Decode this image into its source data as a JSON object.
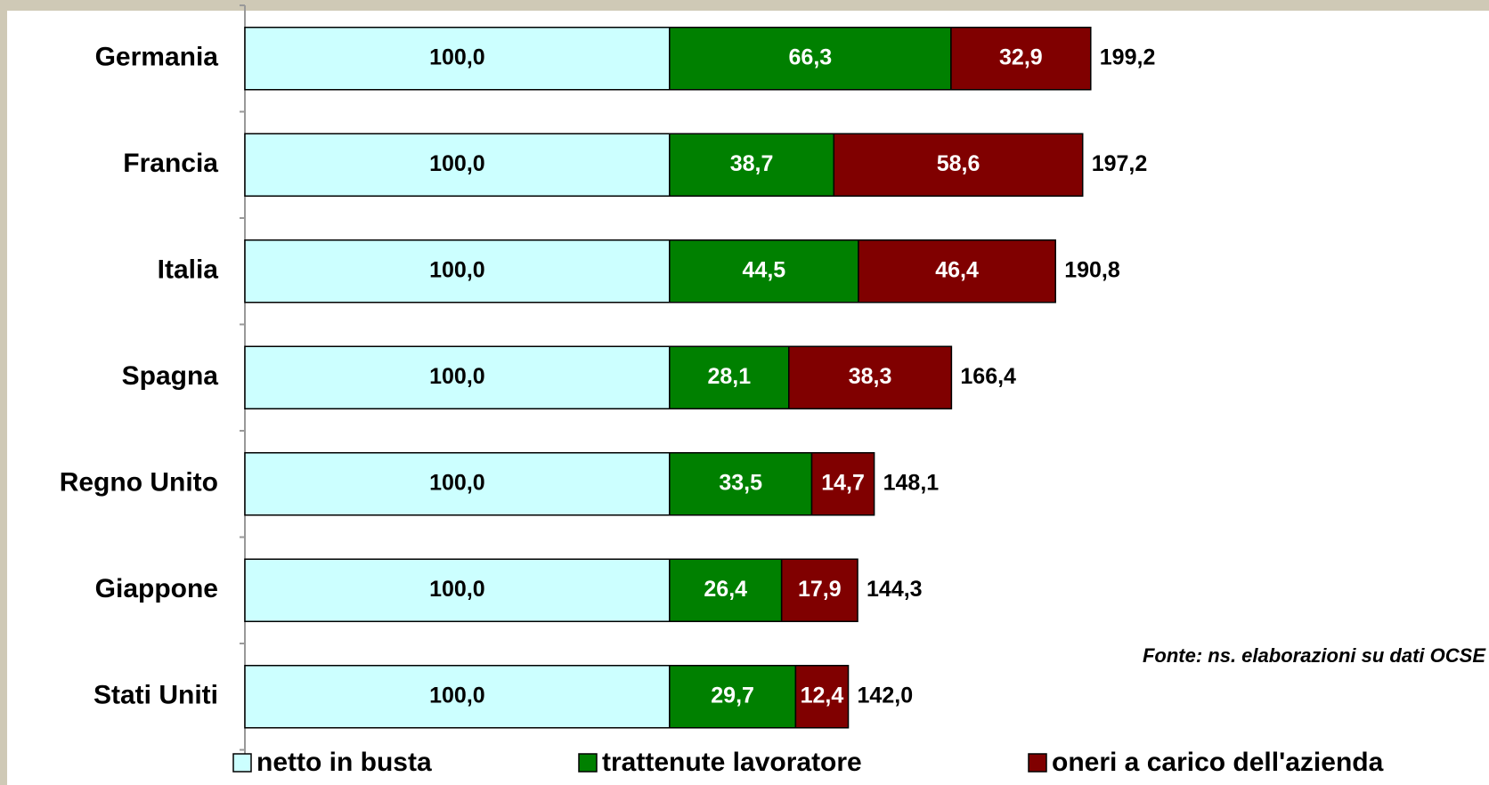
{
  "chart_data": {
    "type": "stacked-bar-horizontal",
    "categories": [
      "Germania",
      "Francia",
      "Italia",
      "Spagna",
      "Regno Unito",
      "Giappone",
      "Stati Uniti"
    ],
    "series": [
      {
        "name": "netto in busta",
        "color": "#ccffff",
        "values": [
          100,
          100,
          100,
          100,
          100,
          100,
          100
        ],
        "value_labels": [
          "100,0",
          "100,0",
          "100,0",
          "100,0",
          "100,0",
          "100,0",
          "100,0"
        ]
      },
      {
        "name": "trattenute lavoratore",
        "color": "#008000",
        "values": [
          66.3,
          38.7,
          44.5,
          28.1,
          33.5,
          26.4,
          29.7
        ],
        "value_labels": [
          "66,3",
          "38,7",
          "44,5",
          "28,1",
          "33,5",
          "26,4",
          "29,7"
        ]
      },
      {
        "name": "oneri a carico dell'azienda",
        "color": "#800000",
        "values": [
          32.9,
          58.6,
          46.4,
          38.3,
          14.7,
          17.9,
          12.4
        ],
        "value_labels": [
          "32,9",
          "58,6",
          "46,4",
          "38,3",
          "14,7",
          "17,9",
          "12,4"
        ]
      }
    ],
    "totals": [
      199.2,
      197.2,
      190.8,
      166.4,
      148.1,
      144.3,
      142.0
    ],
    "total_labels": [
      "199,2",
      "197,2",
      "190,8",
      "166,4",
      "148,1",
      "144,3",
      "142,0"
    ],
    "xlim": [
      0,
      250
    ],
    "annotation": "Fonte: ns. elaborazioni su dati OCSE",
    "legend": "bottom"
  }
}
